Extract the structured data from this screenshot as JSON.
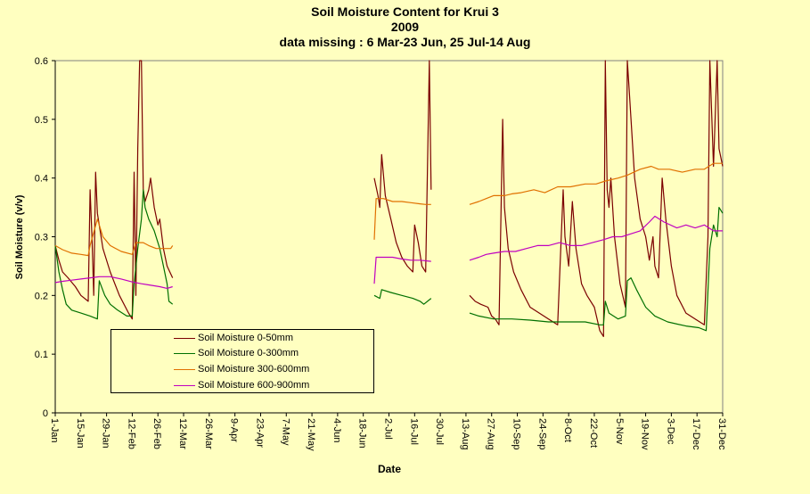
{
  "titles": {
    "line1": "Soil Moisture Content for Krui 3",
    "line2": "2009",
    "line3": "data missing  : 6 Mar-23 Jun, 25 Jul-14 Aug"
  },
  "chart_data": {
    "type": "line",
    "title": "Soil Moisture Content for Krui 3",
    "subtitle": "2009",
    "note": "data missing  : 6 Mar-23 Jun, 25 Jul-14 Aug",
    "xlabel": "Date",
    "ylabel": "Soil Moisture (v/v)",
    "ylim": [
      0,
      0.6
    ],
    "yticks": [
      "0",
      "0.1",
      "0.2",
      "0.3",
      "0.4",
      "0.5",
      "0.6"
    ],
    "xlim_day_of_year": [
      1,
      365
    ],
    "xticks": [
      "1-Jan",
      "15-Jan",
      "29-Jan",
      "12-Feb",
      "26-Feb",
      "12-Mar",
      "26-Mar",
      "9-Apr",
      "23-Apr",
      "7-May",
      "21-May",
      "4-Jun",
      "18-Jun",
      "2-Jul",
      "16-Jul",
      "30-Jul",
      "13-Aug",
      "27-Aug",
      "10-Sep",
      "24-Sep",
      "8-Oct",
      "22-Oct",
      "5-Nov",
      "19-Nov",
      "3-Dec",
      "17-Dec",
      "31-Dec"
    ],
    "grid": false,
    "legend_position": "lower-left",
    "series": [
      {
        "name": "Soil Moisture 0-50mm",
        "color": "#7B0000",
        "segments": [
          [
            [
              1,
              0.285
            ],
            [
              3,
              0.26
            ],
            [
              5,
              0.24
            ],
            [
              8,
              0.23
            ],
            [
              12,
              0.215
            ],
            [
              15,
              0.2
            ],
            [
              19,
              0.19
            ],
            [
              20,
              0.38
            ],
            [
              21,
              0.3
            ],
            [
              22,
              0.2
            ],
            [
              23,
              0.41
            ],
            [
              24,
              0.34
            ],
            [
              27,
              0.28
            ],
            [
              31,
              0.24
            ],
            [
              36,
              0.2
            ],
            [
              41,
              0.17
            ],
            [
              43,
              0.16
            ],
            [
              44,
              0.41
            ],
            [
              45,
              0.2
            ],
            [
              46,
              0.45
            ],
            [
              47,
              0.6
            ],
            [
              48,
              0.6
            ],
            [
              49,
              0.38
            ],
            [
              50,
              0.36
            ],
            [
              52,
              0.38
            ],
            [
              53,
              0.4
            ],
            [
              55,
              0.35
            ],
            [
              57,
              0.32
            ],
            [
              58,
              0.33
            ],
            [
              60,
              0.28
            ],
            [
              62,
              0.25
            ],
            [
              65,
              0.23
            ]
          ],
          [
            [
              175,
              0.4
            ],
            [
              177,
              0.37
            ],
            [
              178,
              0.35
            ],
            [
              179,
              0.44
            ],
            [
              181,
              0.37
            ],
            [
              184,
              0.33
            ],
            [
              187,
              0.29
            ],
            [
              190,
              0.265
            ],
            [
              193,
              0.25
            ],
            [
              196,
              0.24
            ],
            [
              197,
              0.32
            ],
            [
              199,
              0.29
            ],
            [
              201,
              0.25
            ],
            [
              203,
              0.24
            ],
            [
              205,
              0.6
            ],
            [
              206,
              0.38
            ]
          ],
          [
            [
              227,
              0.2
            ],
            [
              230,
              0.19
            ],
            [
              233,
              0.185
            ],
            [
              237,
              0.18
            ],
            [
              239,
              0.165
            ],
            [
              241,
              0.16
            ],
            [
              243,
              0.15
            ],
            [
              245,
              0.5
            ],
            [
              246,
              0.35
            ],
            [
              248,
              0.28
            ],
            [
              251,
              0.24
            ],
            [
              255,
              0.21
            ],
            [
              260,
              0.18
            ],
            [
              265,
              0.17
            ],
            [
              270,
              0.16
            ],
            [
              275,
              0.15
            ],
            [
              278,
              0.38
            ],
            [
              279,
              0.3
            ],
            [
              281,
              0.25
            ],
            [
              283,
              0.36
            ],
            [
              285,
              0.28
            ],
            [
              288,
              0.22
            ],
            [
              291,
              0.2
            ],
            [
              295,
              0.18
            ],
            [
              298,
              0.14
            ],
            [
              300,
              0.13
            ],
            [
              301,
              0.6
            ],
            [
              302,
              0.38
            ],
            [
              303,
              0.35
            ],
            [
              304,
              0.4
            ],
            [
              306,
              0.3
            ],
            [
              309,
              0.22
            ],
            [
              312,
              0.18
            ],
            [
              313,
              0.6
            ],
            [
              314,
              0.55
            ],
            [
              317,
              0.4
            ],
            [
              320,
              0.33
            ],
            [
              323,
              0.3
            ],
            [
              325,
              0.26
            ],
            [
              327,
              0.3
            ],
            [
              328,
              0.25
            ],
            [
              330,
              0.23
            ],
            [
              332,
              0.4
            ],
            [
              334,
              0.33
            ],
            [
              337,
              0.25
            ],
            [
              340,
              0.2
            ],
            [
              345,
              0.17
            ],
            [
              350,
              0.16
            ],
            [
              355,
              0.15
            ],
            [
              357,
              0.3
            ],
            [
              358,
              0.6
            ],
            [
              360,
              0.42
            ],
            [
              362,
              0.6
            ],
            [
              363,
              0.45
            ],
            [
              365,
              0.42
            ]
          ]
        ]
      },
      {
        "name": "Soil Moisture 0-300mm",
        "color": "#007000",
        "segments": [
          [
            [
              1,
              0.285
            ],
            [
              3,
              0.24
            ],
            [
              5,
              0.21
            ],
            [
              7,
              0.185
            ],
            [
              10,
              0.175
            ],
            [
              15,
              0.17
            ],
            [
              20,
              0.165
            ],
            [
              24,
              0.16
            ],
            [
              25,
              0.225
            ],
            [
              28,
              0.2
            ],
            [
              31,
              0.185
            ],
            [
              35,
              0.175
            ],
            [
              40,
              0.165
            ],
            [
              43,
              0.165
            ],
            [
              44,
              0.22
            ],
            [
              46,
              0.28
            ],
            [
              48,
              0.33
            ],
            [
              49,
              0.38
            ],
            [
              50,
              0.35
            ],
            [
              52,
              0.33
            ],
            [
              55,
              0.31
            ],
            [
              58,
              0.28
            ],
            [
              60,
              0.25
            ],
            [
              62,
              0.22
            ],
            [
              63,
              0.19
            ],
            [
              65,
              0.185
            ]
          ],
          [
            [
              175,
              0.2
            ],
            [
              178,
              0.195
            ],
            [
              179,
              0.21
            ],
            [
              184,
              0.205
            ],
            [
              190,
              0.2
            ],
            [
              196,
              0.195
            ],
            [
              200,
              0.19
            ],
            [
              202,
              0.185
            ],
            [
              206,
              0.195
            ]
          ],
          [
            [
              227,
              0.17
            ],
            [
              232,
              0.165
            ],
            [
              240,
              0.16
            ],
            [
              250,
              0.16
            ],
            [
              260,
              0.158
            ],
            [
              270,
              0.155
            ],
            [
              280,
              0.155
            ],
            [
              290,
              0.155
            ],
            [
              298,
              0.15
            ],
            [
              300,
              0.15
            ],
            [
              301,
              0.19
            ],
            [
              303,
              0.17
            ],
            [
              308,
              0.16
            ],
            [
              312,
              0.165
            ],
            [
              313,
              0.225
            ],
            [
              315,
              0.23
            ],
            [
              318,
              0.21
            ],
            [
              323,
              0.18
            ],
            [
              328,
              0.165
            ],
            [
              335,
              0.155
            ],
            [
              345,
              0.148
            ],
            [
              352,
              0.145
            ],
            [
              356,
              0.14
            ],
            [
              358,
              0.28
            ],
            [
              360,
              0.32
            ],
            [
              362,
              0.3
            ],
            [
              363,
              0.35
            ],
            [
              365,
              0.34
            ]
          ]
        ]
      },
      {
        "name": "Soil Moisture 300-600mm",
        "color": "#E07000",
        "segments": [
          [
            [
              1,
              0.285
            ],
            [
              5,
              0.278
            ],
            [
              10,
              0.272
            ],
            [
              15,
              0.27
            ],
            [
              19,
              0.268
            ],
            [
              20,
              0.285
            ],
            [
              24,
              0.33
            ],
            [
              27,
              0.3
            ],
            [
              31,
              0.285
            ],
            [
              37,
              0.275
            ],
            [
              43,
              0.27
            ],
            [
              45,
              0.29
            ],
            [
              49,
              0.29
            ],
            [
              52,
              0.285
            ],
            [
              56,
              0.28
            ],
            [
              60,
              0.28
            ],
            [
              64,
              0.28
            ],
            [
              65,
              0.285
            ]
          ],
          [
            [
              175,
              0.295
            ],
            [
              176,
              0.365
            ],
            [
              180,
              0.365
            ],
            [
              185,
              0.36
            ],
            [
              190,
              0.36
            ],
            [
              195,
              0.358
            ],
            [
              200,
              0.356
            ],
            [
              203,
              0.355
            ],
            [
              206,
              0.355
            ]
          ],
          [
            [
              227,
              0.355
            ],
            [
              232,
              0.36
            ],
            [
              236,
              0.365
            ],
            [
              240,
              0.37
            ],
            [
              246,
              0.37
            ],
            [
              250,
              0.373
            ],
            [
              255,
              0.375
            ],
            [
              262,
              0.38
            ],
            [
              268,
              0.375
            ],
            [
              275,
              0.385
            ],
            [
              282,
              0.385
            ],
            [
              290,
              0.39
            ],
            [
              296,
              0.39
            ],
            [
              301,
              0.395
            ],
            [
              308,
              0.4
            ],
            [
              313,
              0.405
            ],
            [
              320,
              0.415
            ],
            [
              326,
              0.42
            ],
            [
              330,
              0.415
            ],
            [
              336,
              0.415
            ],
            [
              343,
              0.41
            ],
            [
              350,
              0.415
            ],
            [
              355,
              0.415
            ],
            [
              360,
              0.425
            ],
            [
              365,
              0.425
            ]
          ]
        ]
      },
      {
        "name": "Soil Moisture 600-900mm",
        "color": "#C000C0",
        "segments": [
          [
            [
              1,
              0.222
            ],
            [
              5,
              0.224
            ],
            [
              10,
              0.226
            ],
            [
              15,
              0.228
            ],
            [
              20,
              0.23
            ],
            [
              25,
              0.232
            ],
            [
              31,
              0.232
            ],
            [
              37,
              0.228
            ],
            [
              43,
              0.223
            ],
            [
              48,
              0.22
            ],
            [
              52,
              0.218
            ],
            [
              58,
              0.215
            ],
            [
              62,
              0.212
            ],
            [
              65,
              0.215
            ]
          ],
          [
            [
              175,
              0.22
            ],
            [
              176,
              0.265
            ],
            [
              180,
              0.265
            ],
            [
              185,
              0.265
            ],
            [
              190,
              0.262
            ],
            [
              195,
              0.26
            ],
            [
              200,
              0.26
            ],
            [
              206,
              0.258
            ]
          ],
          [
            [
              227,
              0.26
            ],
            [
              232,
              0.265
            ],
            [
              236,
              0.27
            ],
            [
              240,
              0.272
            ],
            [
              246,
              0.275
            ],
            [
              252,
              0.275
            ],
            [
              258,
              0.28
            ],
            [
              264,
              0.285
            ],
            [
              270,
              0.285
            ],
            [
              276,
              0.29
            ],
            [
              282,
              0.285
            ],
            [
              288,
              0.285
            ],
            [
              294,
              0.29
            ],
            [
              300,
              0.295
            ],
            [
              305,
              0.3
            ],
            [
              310,
              0.3
            ],
            [
              315,
              0.305
            ],
            [
              320,
              0.31
            ],
            [
              325,
              0.325
            ],
            [
              328,
              0.335
            ],
            [
              333,
              0.325
            ],
            [
              340,
              0.315
            ],
            [
              345,
              0.32
            ],
            [
              350,
              0.315
            ],
            [
              355,
              0.32
            ],
            [
              360,
              0.31
            ],
            [
              365,
              0.31
            ]
          ]
        ]
      }
    ]
  }
}
